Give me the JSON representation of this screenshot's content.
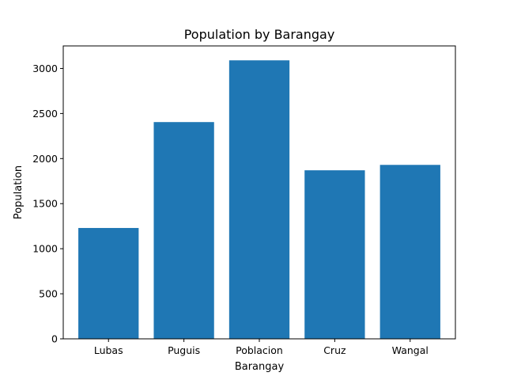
{
  "chart_data": {
    "type": "bar",
    "title": "Population by Barangay",
    "xlabel": "Barangay",
    "ylabel": "Population",
    "categories": [
      "Lubas",
      "Puguis",
      "Poblacion",
      "Cruz",
      "Wangal"
    ],
    "values": [
      1230,
      2405,
      3090,
      1870,
      1930
    ],
    "ylim": [
      0,
      3250
    ],
    "yticks": [
      0,
      500,
      1000,
      1500,
      2000,
      2500,
      3000
    ],
    "grid": false,
    "bar_color": "#1f77b4"
  }
}
